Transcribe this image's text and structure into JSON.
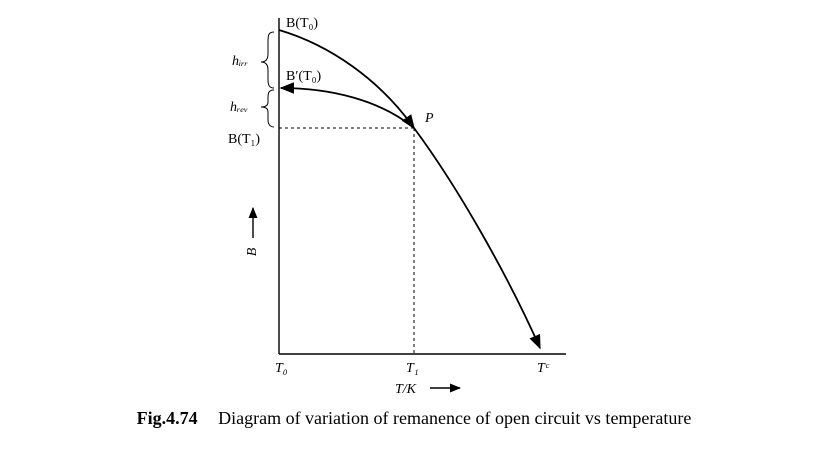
{
  "figure": {
    "labels": {
      "b_t0": "B(T₀)",
      "b_prime_t0": "B′(T₀)",
      "b_t1": "B(T₁)",
      "h_irr": "hᵢᵣᵣ",
      "h_rev": "hᵣₑᵥ",
      "point_p": "P",
      "y_axis": "B",
      "x_axis": "T/K",
      "t0": "T₀",
      "t1": "T₁",
      "tc": "Tᶜ"
    }
  },
  "caption": {
    "number": "Fig.4.74",
    "text": "Diagram of variation of remanence of open circuit vs temperature"
  }
}
